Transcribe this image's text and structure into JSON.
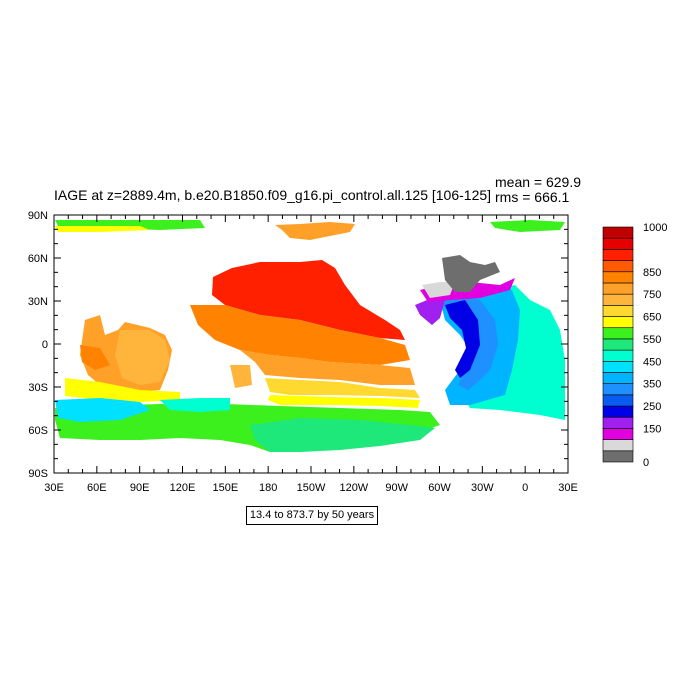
{
  "title": "IAGE at z=2889.4m, b.e20.B1850.f09_g16.pi_control.all.125 [106-125]",
  "stats": {
    "mean": "mean = 629.9",
    "rms": "rms = 666.1"
  },
  "contour_label": "13.4 to 873.7 by 50 years",
  "axes": {
    "x_ticks": [
      "30E",
      "60E",
      "90E",
      "120E",
      "150E",
      "180",
      "150W",
      "120W",
      "90W",
      "60W",
      "30W",
      "0",
      "30E"
    ],
    "y_ticks": [
      "90N",
      "60N",
      "30N",
      "0",
      "30S",
      "60S",
      "90S"
    ]
  },
  "colorbar": {
    "colors": [
      "#6e6e6e",
      "#d9d9d9",
      "#e000e0",
      "#a020f0",
      "#0000e6",
      "#0a5cf0",
      "#1e90ff",
      "#00b4ff",
      "#00e0ff",
      "#00ffd0",
      "#1ee87a",
      "#3cf01e",
      "#ffff00",
      "#ffd830",
      "#ffb43c",
      "#ffa028",
      "#ff8200",
      "#ff5a00",
      "#ff2000",
      "#e60000",
      "#c00000"
    ],
    "labels": [
      {
        "text": "0",
        "bin": 0
      },
      {
        "text": "150",
        "bin": 3
      },
      {
        "text": "250",
        "bin": 5
      },
      {
        "text": "350",
        "bin": 7
      },
      {
        "text": "450",
        "bin": 9
      },
      {
        "text": "550",
        "bin": 11
      },
      {
        "text": "650",
        "bin": 13
      },
      {
        "text": "750",
        "bin": 15
      },
      {
        "text": "850",
        "bin": 17
      },
      {
        "text": "1000",
        "bin": 21
      }
    ]
  },
  "regions": [
    {
      "c": "#ff2000",
      "p": [
        [
          213,
          277
        ],
        [
          232,
          268
        ],
        [
          260,
          262
        ],
        [
          300,
          262
        ],
        [
          322,
          260
        ],
        [
          335,
          268
        ],
        [
          345,
          285
        ],
        [
          360,
          305
        ],
        [
          385,
          320
        ],
        [
          400,
          330
        ],
        [
          405,
          340
        ],
        [
          380,
          338
        ],
        [
          340,
          330
        ],
        [
          300,
          320
        ],
        [
          260,
          315
        ],
        [
          225,
          305
        ],
        [
          212,
          295
        ]
      ]
    },
    {
      "c": "#ff8200",
      "p": [
        [
          190,
          305
        ],
        [
          225,
          305
        ],
        [
          260,
          315
        ],
        [
          300,
          320
        ],
        [
          340,
          330
        ],
        [
          380,
          338
        ],
        [
          405,
          345
        ],
        [
          410,
          360
        ],
        [
          380,
          365
        ],
        [
          330,
          362
        ],
        [
          300,
          358
        ],
        [
          270,
          355
        ],
        [
          240,
          350
        ],
        [
          215,
          340
        ],
        [
          198,
          325
        ]
      ]
    },
    {
      "c": "#ffa028",
      "p": [
        [
          240,
          350
        ],
        [
          270,
          355
        ],
        [
          300,
          358
        ],
        [
          330,
          362
        ],
        [
          380,
          365
        ],
        [
          410,
          368
        ],
        [
          415,
          385
        ],
        [
          380,
          385
        ],
        [
          340,
          380
        ],
        [
          300,
          378
        ],
        [
          265,
          375
        ],
        [
          255,
          362
        ]
      ]
    },
    {
      "c": "#ffd830",
      "p": [
        [
          265,
          378
        ],
        [
          300,
          380
        ],
        [
          340,
          382
        ],
        [
          380,
          388
        ],
        [
          415,
          390
        ],
        [
          420,
          398
        ],
        [
          380,
          396
        ],
        [
          330,
          395
        ],
        [
          290,
          395
        ],
        [
          270,
          392
        ]
      ]
    },
    {
      "c": "#ffff00",
      "p": [
        [
          270,
          395
        ],
        [
          330,
          397
        ],
        [
          380,
          398
        ],
        [
          420,
          400
        ],
        [
          418,
          408
        ],
        [
          380,
          406
        ],
        [
          330,
          405
        ],
        [
          280,
          405
        ],
        [
          268,
          400
        ]
      ]
    },
    {
      "c": "#3cf01e",
      "p": [
        [
          55,
          408
        ],
        [
          120,
          405
        ],
        [
          200,
          403
        ],
        [
          280,
          406
        ],
        [
          340,
          408
        ],
        [
          400,
          410
        ],
        [
          430,
          412
        ],
        [
          440,
          425
        ],
        [
          420,
          432
        ],
        [
          380,
          438
        ],
        [
          330,
          442
        ],
        [
          300,
          448
        ],
        [
          270,
          452
        ],
        [
          250,
          445
        ],
        [
          220,
          440
        ],
        [
          180,
          438
        ],
        [
          140,
          440
        ],
        [
          100,
          440
        ],
        [
          60,
          438
        ],
        [
          55,
          420
        ]
      ]
    },
    {
      "c": "#1ee87a",
      "p": [
        [
          250,
          425
        ],
        [
          300,
          418
        ],
        [
          360,
          420
        ],
        [
          410,
          425
        ],
        [
          435,
          428
        ],
        [
          420,
          440
        ],
        [
          380,
          446
        ],
        [
          340,
          450
        ],
        [
          300,
          452
        ],
        [
          270,
          452
        ],
        [
          255,
          440
        ]
      ]
    },
    {
      "c": "#ffa028",
      "p": [
        [
          85,
          320
        ],
        [
          100,
          315
        ],
        [
          105,
          335
        ],
        [
          118,
          330
        ],
        [
          125,
          322
        ],
        [
          150,
          328
        ],
        [
          165,
          335
        ],
        [
          172,
          350
        ],
        [
          168,
          370
        ],
        [
          160,
          390
        ],
        [
          140,
          392
        ],
        [
          120,
          388
        ],
        [
          100,
          385
        ],
        [
          88,
          375
        ],
        [
          80,
          355
        ]
      ]
    },
    {
      "c": "#ffb43c",
      "p": [
        [
          120,
          330
        ],
        [
          150,
          330
        ],
        [
          165,
          340
        ],
        [
          170,
          360
        ],
        [
          160,
          382
        ],
        [
          140,
          385
        ],
        [
          122,
          378
        ],
        [
          115,
          355
        ]
      ]
    },
    {
      "c": "#ff8200",
      "p": [
        [
          80,
          345
        ],
        [
          100,
          348
        ],
        [
          110,
          365
        ],
        [
          95,
          370
        ],
        [
          82,
          362
        ]
      ]
    },
    {
      "c": "#ffff00",
      "p": [
        [
          65,
          378
        ],
        [
          100,
          382
        ],
        [
          140,
          390
        ],
        [
          180,
          392
        ],
        [
          180,
          400
        ],
        [
          140,
          402
        ],
        [
          100,
          400
        ],
        [
          65,
          396
        ]
      ]
    },
    {
      "c": "#00e0ff",
      "p": [
        [
          55,
          400
        ],
        [
          100,
          398
        ],
        [
          140,
          402
        ],
        [
          150,
          410
        ],
        [
          120,
          420
        ],
        [
          80,
          422
        ],
        [
          58,
          418
        ]
      ]
    },
    {
      "c": "#00ffd0",
      "p": [
        [
          160,
          400
        ],
        [
          200,
          398
        ],
        [
          230,
          398
        ],
        [
          230,
          410
        ],
        [
          200,
          412
        ],
        [
          170,
          410
        ]
      ]
    },
    {
      "c": "#ffb43c",
      "p": [
        [
          230,
          365
        ],
        [
          250,
          365
        ],
        [
          252,
          385
        ],
        [
          235,
          388
        ]
      ]
    },
    {
      "c": "#ffa028",
      "p": [
        [
          465,
          380
        ],
        [
          500,
          378
        ],
        [
          540,
          380
        ],
        [
          560,
          385
        ],
        [
          565,
          395
        ],
        [
          530,
          398
        ],
        [
          500,
          398
        ],
        [
          470,
          398
        ]
      ]
    },
    {
      "c": "#00ffd0",
      "p": [
        [
          485,
          290
        ],
        [
          515,
          285
        ],
        [
          530,
          300
        ],
        [
          550,
          310
        ],
        [
          560,
          330
        ],
        [
          565,
          360
        ],
        [
          565,
          420
        ],
        [
          540,
          415
        ],
        [
          500,
          410
        ],
        [
          470,
          408
        ],
        [
          462,
          395
        ],
        [
          470,
          380
        ],
        [
          478,
          360
        ],
        [
          485,
          330
        ]
      ]
    },
    {
      "c": "#00b4ff",
      "p": [
        [
          440,
          300
        ],
        [
          470,
          290
        ],
        [
          490,
          288
        ],
        [
          512,
          290
        ],
        [
          520,
          310
        ],
        [
          518,
          340
        ],
        [
          512,
          370
        ],
        [
          505,
          395
        ],
        [
          470,
          405
        ],
        [
          450,
          405
        ],
        [
          445,
          390
        ],
        [
          460,
          370
        ],
        [
          470,
          350
        ],
        [
          460,
          335
        ],
        [
          445,
          320
        ]
      ]
    },
    {
      "c": "#1e90ff",
      "p": [
        [
          440,
          300
        ],
        [
          460,
          295
        ],
        [
          480,
          300
        ],
        [
          495,
          320
        ],
        [
          498,
          345
        ],
        [
          490,
          370
        ],
        [
          480,
          380
        ],
        [
          468,
          390
        ],
        [
          458,
          385
        ],
        [
          468,
          365
        ],
        [
          475,
          345
        ],
        [
          465,
          328
        ],
        [
          450,
          315
        ]
      ]
    },
    {
      "c": "#0000e6",
      "p": [
        [
          445,
          305
        ],
        [
          465,
          300
        ],
        [
          478,
          320
        ],
        [
          480,
          345
        ],
        [
          470,
          370
        ],
        [
          460,
          378
        ],
        [
          455,
          370
        ],
        [
          466,
          348
        ],
        [
          462,
          330
        ],
        [
          450,
          318
        ]
      ]
    },
    {
      "c": "#a020f0",
      "p": [
        [
          415,
          305
        ],
        [
          432,
          298
        ],
        [
          445,
          300
        ],
        [
          440,
          318
        ],
        [
          432,
          325
        ],
        [
          420,
          315
        ]
      ]
    },
    {
      "c": "#e000e0",
      "p": [
        [
          420,
          290
        ],
        [
          440,
          285
        ],
        [
          470,
          282
        ],
        [
          500,
          285
        ],
        [
          515,
          278
        ],
        [
          510,
          290
        ],
        [
          480,
          298
        ],
        [
          450,
          300
        ],
        [
          428,
          302
        ]
      ]
    },
    {
      "c": "#d9d9d9",
      "p": [
        [
          422,
          285
        ],
        [
          440,
          282
        ],
        [
          455,
          282
        ],
        [
          450,
          295
        ],
        [
          430,
          298
        ]
      ]
    },
    {
      "c": "#6e6e6e",
      "p": [
        [
          442,
          258
        ],
        [
          460,
          255
        ],
        [
          470,
          262
        ],
        [
          485,
          265
        ],
        [
          495,
          262
        ],
        [
          500,
          272
        ],
        [
          480,
          280
        ],
        [
          470,
          292
        ],
        [
          455,
          292
        ],
        [
          445,
          280
        ]
      ]
    },
    {
      "c": "#3cf01e",
      "p": [
        [
          55,
          220
        ],
        [
          200,
          220
        ],
        [
          205,
          228
        ],
        [
          160,
          230
        ],
        [
          100,
          228
        ],
        [
          58,
          226
        ]
      ]
    },
    {
      "c": "#ffff00",
      "p": [
        [
          55,
          226
        ],
        [
          140,
          226
        ],
        [
          150,
          230
        ],
        [
          100,
          232
        ],
        [
          58,
          232
        ]
      ]
    },
    {
      "c": "#ffa028",
      "p": [
        [
          275,
          225
        ],
        [
          300,
          224
        ],
        [
          330,
          222
        ],
        [
          355,
          224
        ],
        [
          350,
          232
        ],
        [
          330,
          236
        ],
        [
          310,
          240
        ],
        [
          290,
          238
        ],
        [
          282,
          230
        ]
      ]
    },
    {
      "c": "#3cf01e",
      "p": [
        [
          490,
          222
        ],
        [
          530,
          220
        ],
        [
          565,
          222
        ],
        [
          560,
          230
        ],
        [
          520,
          232
        ],
        [
          495,
          228
        ]
      ]
    }
  ]
}
